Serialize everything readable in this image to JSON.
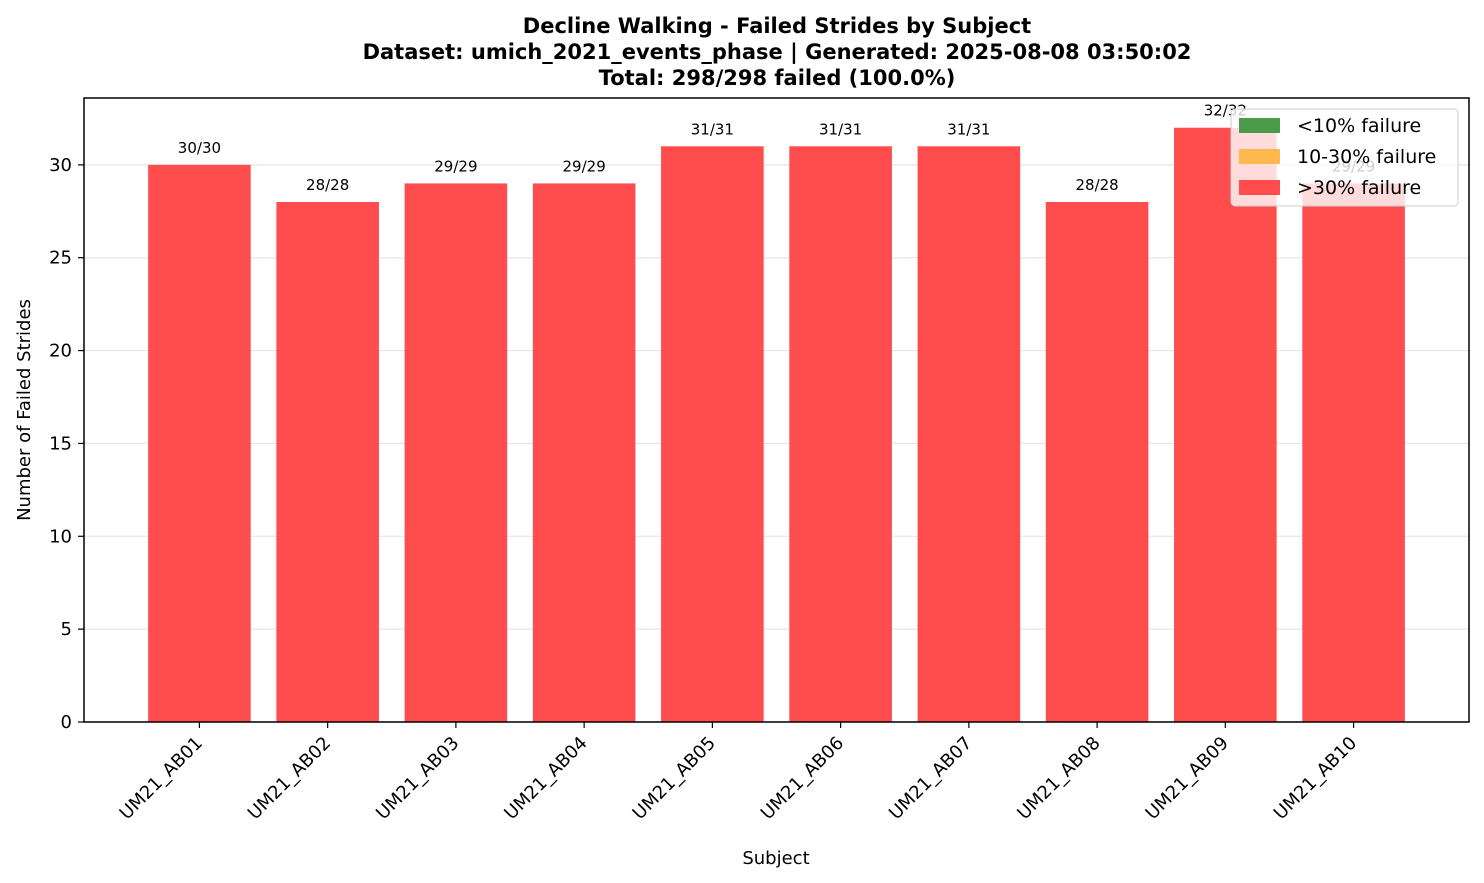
{
  "chart_data": {
    "type": "bar",
    "title_lines": [
      "Decline Walking - Failed Strides by Subject",
      "Dataset: umich_2021_events_phase | Generated: 2025-08-08 03:50:02",
      "Total: 298/298 failed (100.0%)"
    ],
    "xlabel": "Subject",
    "ylabel": "Number of Failed Strides",
    "ylim": [
      0,
      33.6
    ],
    "yticks": [
      0,
      5,
      10,
      15,
      20,
      25,
      30
    ],
    "grid": "horizontal, light",
    "categories": [
      "UM21_AB01",
      "UM21_AB02",
      "UM21_AB03",
      "UM21_AB04",
      "UM21_AB05",
      "UM21_AB06",
      "UM21_AB07",
      "UM21_AB08",
      "UM21_AB09",
      "UM21_AB10"
    ],
    "values": [
      30,
      28,
      29,
      29,
      31,
      31,
      31,
      28,
      32,
      29
    ],
    "bar_labels": [
      "30/30",
      "28/28",
      "29/29",
      "29/29",
      "31/31",
      "31/31",
      "31/31",
      "28/28",
      "32/32",
      "29/29"
    ],
    "bar_color": "#ff4d4d",
    "legend_position": "top-right",
    "legend": [
      {
        "label": "<10% failure",
        "color": "#4a9a4a"
      },
      {
        "label": "10-30% failure",
        "color": "#ffb84d"
      },
      {
        "label": ">30% failure",
        "color": "#ff4d4d"
      }
    ]
  }
}
